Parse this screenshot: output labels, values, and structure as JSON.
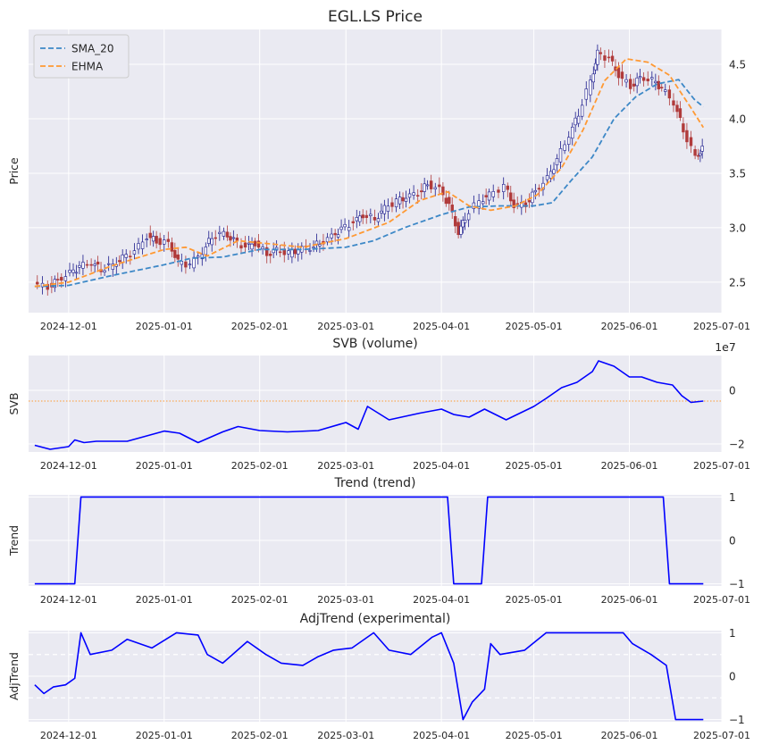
{
  "chart_data": [
    {
      "type": "candlestick-line",
      "title": "EGL.LS Price",
      "xlabel": "",
      "ylabel": "Price",
      "x_ticks": [
        "2024-12-01",
        "2025-01-01",
        "2025-02-01",
        "2025-03-01",
        "2025-04-01",
        "2025-05-01",
        "2025-06-01",
        "2025-07-01"
      ],
      "x_range": [
        "2024-11-18",
        "2025-07-01"
      ],
      "ylim": [
        2.22,
        4.82
      ],
      "y_ticks": [
        "2.5",
        "3.0",
        "3.5",
        "4.0",
        "4.5"
      ],
      "grid": true,
      "legend": "top-left",
      "candles": {
        "up_color": "#1a1a8c",
        "down_color": "#b03a3a",
        "close_points": [
          [
            "2024-11-20",
            2.48
          ],
          [
            "2024-11-25",
            2.46
          ],
          [
            "2024-11-28",
            2.52
          ],
          [
            "2024-12-02",
            2.58
          ],
          [
            "2024-12-05",
            2.64
          ],
          [
            "2024-12-09",
            2.68
          ],
          [
            "2024-12-12",
            2.62
          ],
          [
            "2024-12-16",
            2.66
          ],
          [
            "2024-12-19",
            2.72
          ],
          [
            "2024-12-23",
            2.78
          ],
          [
            "2024-12-27",
            2.92
          ],
          [
            "2024-12-30",
            2.88
          ],
          [
            "2025-01-03",
            2.86
          ],
          [
            "2025-01-06",
            2.68
          ],
          [
            "2025-01-10",
            2.66
          ],
          [
            "2025-01-14",
            2.78
          ],
          [
            "2025-01-17",
            2.92
          ],
          [
            "2025-01-21",
            2.95
          ],
          [
            "2025-01-24",
            2.88
          ],
          [
            "2025-01-28",
            2.82
          ],
          [
            "2025-01-31",
            2.86
          ],
          [
            "2025-02-04",
            2.76
          ],
          [
            "2025-02-07",
            2.8
          ],
          [
            "2025-02-11",
            2.76
          ],
          [
            "2025-02-14",
            2.8
          ],
          [
            "2025-02-18",
            2.82
          ],
          [
            "2025-02-21",
            2.86
          ],
          [
            "2025-02-25",
            2.92
          ],
          [
            "2025-02-28",
            2.98
          ],
          [
            "2025-03-04",
            3.05
          ],
          [
            "2025-03-07",
            3.12
          ],
          [
            "2025-03-11",
            3.08
          ],
          [
            "2025-03-14",
            3.18
          ],
          [
            "2025-03-18",
            3.24
          ],
          [
            "2025-03-21",
            3.28
          ],
          [
            "2025-03-25",
            3.32
          ],
          [
            "2025-03-28",
            3.4
          ],
          [
            "2025-04-01",
            3.35
          ],
          [
            "2025-04-04",
            3.2
          ],
          [
            "2025-04-07",
            2.95
          ],
          [
            "2025-04-09",
            3.1
          ],
          [
            "2025-04-14",
            3.25
          ],
          [
            "2025-04-17",
            3.3
          ],
          [
            "2025-04-22",
            3.38
          ],
          [
            "2025-04-25",
            3.2
          ],
          [
            "2025-04-29",
            3.22
          ],
          [
            "2025-05-02",
            3.34
          ],
          [
            "2025-05-06",
            3.45
          ],
          [
            "2025-05-09",
            3.62
          ],
          [
            "2025-05-13",
            3.85
          ],
          [
            "2025-05-16",
            4.05
          ],
          [
            "2025-05-20",
            4.35
          ],
          [
            "2025-05-22",
            4.6
          ],
          [
            "2025-05-26",
            4.55
          ],
          [
            "2025-05-29",
            4.4
          ],
          [
            "2025-06-02",
            4.3
          ],
          [
            "2025-06-05",
            4.38
          ],
          [
            "2025-06-09",
            4.35
          ],
          [
            "2025-06-12",
            4.28
          ],
          [
            "2025-06-16",
            4.15
          ],
          [
            "2025-06-19",
            3.9
          ],
          [
            "2025-06-23",
            3.65
          ],
          [
            "2025-06-25",
            3.72
          ]
        ]
      },
      "series": [
        {
          "name": "SMA_20",
          "color": "#3d88c7",
          "style": "dashed",
          "points": [
            [
              "2024-11-20",
              2.46
            ],
            [
              "2024-12-01",
              2.47
            ],
            [
              "2024-12-15",
              2.56
            ],
            [
              "2025-01-01",
              2.66
            ],
            [
              "2025-01-10",
              2.72
            ],
            [
              "2025-01-20",
              2.73
            ],
            [
              "2025-02-01",
              2.8
            ],
            [
              "2025-02-15",
              2.8
            ],
            [
              "2025-03-01",
              2.82
            ],
            [
              "2025-03-10",
              2.88
            ],
            [
              "2025-03-20",
              3.0
            ],
            [
              "2025-04-01",
              3.12
            ],
            [
              "2025-04-10",
              3.19
            ],
            [
              "2025-04-20",
              3.2
            ],
            [
              "2025-05-01",
              3.2
            ],
            [
              "2025-05-07",
              3.23
            ],
            [
              "2025-05-13",
              3.43
            ],
            [
              "2025-05-20",
              3.65
            ],
            [
              "2025-05-27",
              4.0
            ],
            [
              "2025-06-03",
              4.2
            ],
            [
              "2025-06-10",
              4.32
            ],
            [
              "2025-06-17",
              4.36
            ],
            [
              "2025-06-22",
              4.18
            ],
            [
              "2025-06-25",
              4.11
            ]
          ]
        },
        {
          "name": "EHMA",
          "color": "#ff9933",
          "style": "dashed",
          "points": [
            [
              "2024-11-20",
              2.46
            ],
            [
              "2024-12-01",
              2.5
            ],
            [
              "2024-12-15",
              2.65
            ],
            [
              "2025-01-01",
              2.8
            ],
            [
              "2025-01-08",
              2.82
            ],
            [
              "2025-01-15",
              2.74
            ],
            [
              "2025-01-25",
              2.88
            ],
            [
              "2025-02-05",
              2.85
            ],
            [
              "2025-02-15",
              2.82
            ],
            [
              "2025-03-01",
              2.9
            ],
            [
              "2025-03-15",
              3.05
            ],
            [
              "2025-03-25",
              3.25
            ],
            [
              "2025-04-03",
              3.33
            ],
            [
              "2025-04-10",
              3.2
            ],
            [
              "2025-04-17",
              3.16
            ],
            [
              "2025-04-25",
              3.2
            ],
            [
              "2025-05-02",
              3.3
            ],
            [
              "2025-05-10",
              3.55
            ],
            [
              "2025-05-17",
              3.9
            ],
            [
              "2025-05-24",
              4.35
            ],
            [
              "2025-05-31",
              4.55
            ],
            [
              "2025-06-07",
              4.52
            ],
            [
              "2025-06-14",
              4.4
            ],
            [
              "2025-06-21",
              4.1
            ],
            [
              "2025-06-25",
              3.92
            ]
          ]
        }
      ]
    },
    {
      "type": "line",
      "title": "SVB (volume)",
      "xlabel": "",
      "ylabel": "SVB",
      "x_ticks": [
        "2024-12-01",
        "2025-01-01",
        "2025-02-01",
        "2025-03-01",
        "2025-04-01",
        "2025-05-01",
        "2025-06-01",
        "2025-07-01"
      ],
      "x_range": [
        "2024-11-18",
        "2025-07-01"
      ],
      "ylim": [
        -2.3,
        1.3
      ],
      "y_ticks": [
        "−2",
        "0"
      ],
      "y_scale_label": "1e7",
      "reference_line": -0.4,
      "reference_color": "#ff9933",
      "grid": true,
      "series": [
        {
          "color": "#0000ff",
          "points": [
            [
              "2024-11-20",
              -2.05
            ],
            [
              "2024-11-25",
              -2.2
            ],
            [
              "2024-12-01",
              -2.1
            ],
            [
              "2024-12-03",
              -1.85
            ],
            [
              "2024-12-06",
              -1.95
            ],
            [
              "2024-12-10",
              -1.9
            ],
            [
              "2024-12-20",
              -1.9
            ],
            [
              "2025-01-01",
              -1.52
            ],
            [
              "2025-01-06",
              -1.6
            ],
            [
              "2025-01-12",
              -1.95
            ],
            [
              "2025-01-20",
              -1.55
            ],
            [
              "2025-01-25",
              -1.35
            ],
            [
              "2025-02-01",
              -1.5
            ],
            [
              "2025-02-10",
              -1.55
            ],
            [
              "2025-02-20",
              -1.5
            ],
            [
              "2025-03-01",
              -1.2
            ],
            [
              "2025-03-05",
              -1.45
            ],
            [
              "2025-03-08",
              -0.6
            ],
            [
              "2025-03-15",
              -1.1
            ],
            [
              "2025-03-25",
              -0.85
            ],
            [
              "2025-04-01",
              -0.7
            ],
            [
              "2025-04-05",
              -0.9
            ],
            [
              "2025-04-10",
              -1.0
            ],
            [
              "2025-04-15",
              -0.7
            ],
            [
              "2025-04-22",
              -1.1
            ],
            [
              "2025-05-01",
              -0.6
            ],
            [
              "2025-05-05",
              -0.3
            ],
            [
              "2025-05-10",
              0.1
            ],
            [
              "2025-05-15",
              0.3
            ],
            [
              "2025-05-20",
              0.7
            ],
            [
              "2025-05-22",
              1.1
            ],
            [
              "2025-05-27",
              0.9
            ],
            [
              "2025-06-01",
              0.5
            ],
            [
              "2025-06-05",
              0.5
            ],
            [
              "2025-06-10",
              0.3
            ],
            [
              "2025-06-15",
              0.2
            ],
            [
              "2025-06-18",
              -0.2
            ],
            [
              "2025-06-21",
              -0.45
            ],
            [
              "2025-06-25",
              -0.4
            ]
          ]
        }
      ]
    },
    {
      "type": "line",
      "title": "Trend (trend)",
      "xlabel": "",
      "ylabel": "Trend",
      "x_ticks": [
        "2024-12-01",
        "2025-01-01",
        "2025-02-01",
        "2025-03-01",
        "2025-04-01",
        "2025-05-01",
        "2025-06-01",
        "2025-07-01"
      ],
      "x_range": [
        "2024-11-18",
        "2025-07-01"
      ],
      "ylim": [
        -1.05,
        1.05
      ],
      "y_ticks": [
        "−1",
        "0",
        "1"
      ],
      "grid": true,
      "series": [
        {
          "color": "#0000ff",
          "points": [
            [
              "2024-11-20",
              -1
            ],
            [
              "2024-12-03",
              -1
            ],
            [
              "2024-12-05",
              1
            ],
            [
              "2025-04-03",
              1
            ],
            [
              "2025-04-05",
              -1
            ],
            [
              "2025-04-14",
              -1
            ],
            [
              "2025-04-16",
              1
            ],
            [
              "2025-06-12",
              1
            ],
            [
              "2025-06-14",
              -1
            ],
            [
              "2025-06-25",
              -1
            ]
          ]
        }
      ]
    },
    {
      "type": "line",
      "title": "AdjTrend (experimental)",
      "xlabel": "",
      "ylabel": "AdjTrend",
      "x_ticks": [
        "2024-12-01",
        "2025-01-01",
        "2025-02-01",
        "2025-03-01",
        "2025-04-01",
        "2025-05-01",
        "2025-06-01",
        "2025-07-01"
      ],
      "x_range": [
        "2024-11-18",
        "2025-07-01"
      ],
      "ylim": [
        -1.05,
        1.05
      ],
      "y_ticks": [
        "−1",
        "0",
        "1"
      ],
      "reference_lines": [
        0.5,
        -0.5
      ],
      "grid": true,
      "series": [
        {
          "color": "#0000ff",
          "points": [
            [
              "2024-11-20",
              -0.2
            ],
            [
              "2024-11-23",
              -0.4
            ],
            [
              "2024-11-26",
              -0.25
            ],
            [
              "2024-11-30",
              -0.2
            ],
            [
              "2024-12-03",
              -0.05
            ],
            [
              "2024-12-05",
              1.0
            ],
            [
              "2024-12-08",
              0.5
            ],
            [
              "2024-12-15",
              0.6
            ],
            [
              "2024-12-20",
              0.85
            ],
            [
              "2024-12-28",
              0.65
            ],
            [
              "2025-01-05",
              1.0
            ],
            [
              "2025-01-12",
              0.95
            ],
            [
              "2025-01-15",
              0.5
            ],
            [
              "2025-01-20",
              0.3
            ],
            [
              "2025-01-28",
              0.8
            ],
            [
              "2025-02-03",
              0.5
            ],
            [
              "2025-02-08",
              0.3
            ],
            [
              "2025-02-15",
              0.25
            ],
            [
              "2025-02-20",
              0.45
            ],
            [
              "2025-02-25",
              0.6
            ],
            [
              "2025-03-03",
              0.65
            ],
            [
              "2025-03-10",
              1.0
            ],
            [
              "2025-03-15",
              0.6
            ],
            [
              "2025-03-22",
              0.5
            ],
            [
              "2025-03-29",
              0.9
            ],
            [
              "2025-04-01",
              1.0
            ],
            [
              "2025-04-05",
              0.3
            ],
            [
              "2025-04-08",
              -1.0
            ],
            [
              "2025-04-11",
              -0.6
            ],
            [
              "2025-04-15",
              -0.3
            ],
            [
              "2025-04-17",
              0.75
            ],
            [
              "2025-04-20",
              0.5
            ],
            [
              "2025-04-28",
              0.6
            ],
            [
              "2025-05-05",
              1.0
            ],
            [
              "2025-05-10",
              1.0
            ],
            [
              "2025-05-20",
              1.0
            ],
            [
              "2025-05-30",
              1.0
            ],
            [
              "2025-06-02",
              0.75
            ],
            [
              "2025-06-08",
              0.5
            ],
            [
              "2025-06-13",
              0.25
            ],
            [
              "2025-06-16",
              -1.0
            ],
            [
              "2025-06-25",
              -1.0
            ]
          ]
        }
      ]
    }
  ]
}
